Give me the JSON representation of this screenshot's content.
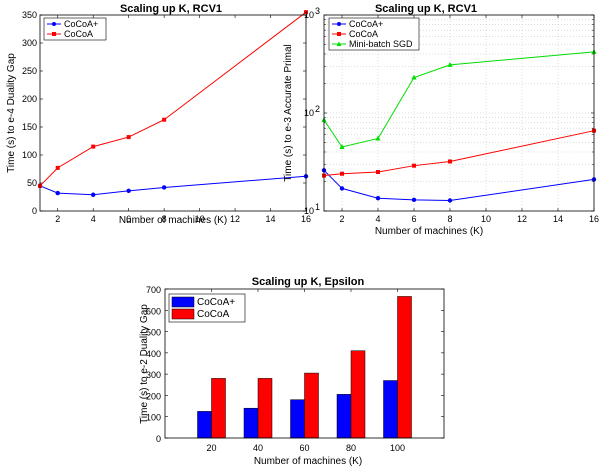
{
  "chart_data": [
    {
      "id": "c1",
      "type": "line",
      "title": "Scaling up K, RCV1",
      "xlabel": "Number of machines (K)",
      "ylabel": "Time (s) to e-4 Duality Gap",
      "xlim": [
        1,
        16
      ],
      "ylim": [
        0,
        350
      ],
      "xticks": [
        2,
        4,
        6,
        8,
        10,
        12,
        14,
        16
      ],
      "yticks": [
        0,
        50,
        100,
        150,
        200,
        250,
        300,
        350
      ],
      "legend_position": "top-left",
      "grid": false,
      "series": [
        {
          "name": "CoCoA+",
          "color": "#0000ff",
          "marker": "circle",
          "x": [
            1,
            2,
            4,
            6,
            8,
            16
          ],
          "y": [
            45,
            32,
            29,
            36,
            42,
            62
          ]
        },
        {
          "name": "CoCoA",
          "color": "#ff0000",
          "marker": "square",
          "x": [
            1,
            2,
            4,
            6,
            8,
            16
          ],
          "y": [
            45,
            77,
            115,
            132,
            163,
            355
          ]
        }
      ]
    },
    {
      "id": "c2",
      "type": "line",
      "scale": "log",
      "title": "Scaling up K, RCV1",
      "xlabel": "Number of machines (K)",
      "ylabel": "Time (s) to e-3 Accurate Primal",
      "xlim": [
        1,
        16
      ],
      "ylim": [
        10,
        1000
      ],
      "xticks": [
        2,
        4,
        6,
        8,
        10,
        12,
        14,
        16
      ],
      "yticks": [
        10,
        100,
        1000
      ],
      "ytick_labels": [
        "10",
        "10",
        "10"
      ],
      "ytick_exps": [
        "1",
        "2",
        "3"
      ],
      "legend_position": "top-left",
      "grid": true,
      "series": [
        {
          "name": "CoCoA+",
          "color": "#0000ff",
          "marker": "circle",
          "x": [
            1,
            2,
            4,
            6,
            8,
            16
          ],
          "y": [
            26,
            17,
            13.5,
            13,
            12.8,
            21
          ]
        },
        {
          "name": "CoCoA",
          "color": "#ff0000",
          "marker": "square",
          "x": [
            1,
            2,
            4,
            6,
            8,
            16
          ],
          "y": [
            23,
            24,
            25,
            29,
            32,
            66
          ]
        },
        {
          "name": "Mini-batch SGD",
          "color": "#00dd00",
          "marker": "triangle",
          "x": [
            1,
            2,
            4,
            6,
            8,
            16
          ],
          "y": [
            85,
            45,
            55,
            230,
            310,
            420
          ]
        }
      ]
    },
    {
      "id": "c3",
      "type": "bar",
      "title": "Scaling up K, Epsilon",
      "xlabel": "Number of machines (K)",
      "ylabel": "Time (s) to e-2 Duality Gap",
      "categories": [
        "20",
        "40",
        "60",
        "80",
        "100"
      ],
      "ylim": [
        0,
        700
      ],
      "yticks": [
        0,
        100,
        200,
        300,
        400,
        500,
        600,
        700
      ],
      "legend_position": "top-left",
      "grid": false,
      "series": [
        {
          "name": "CoCoA+",
          "color": "#0000ff",
          "values": [
            125,
            140,
            180,
            205,
            270
          ]
        },
        {
          "name": "CoCoA",
          "color": "#ff0000",
          "values": [
            280,
            280,
            305,
            410,
            665
          ]
        }
      ]
    }
  ]
}
